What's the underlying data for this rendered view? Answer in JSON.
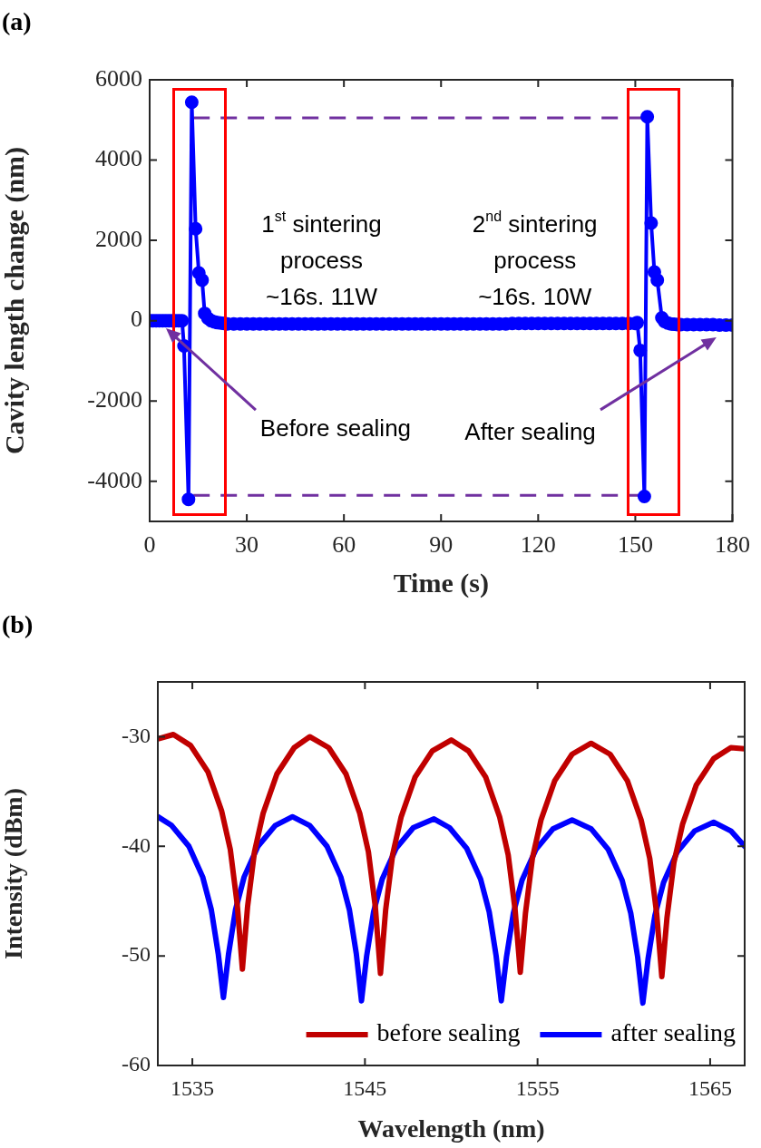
{
  "chart_data": [
    {
      "type": "line",
      "title": "(a)",
      "xlabel": "Time (s)",
      "ylabel": "Cavity length change (nm)",
      "xlim": [
        0,
        180
      ],
      "xticks": [
        0,
        30,
        60,
        90,
        120,
        150,
        180
      ],
      "ylim": [
        -5000,
        6000
      ],
      "yticks": [
        -4000,
        -2000,
        0,
        2000,
        4000,
        6000
      ],
      "marker": "circle",
      "series": [
        {
          "color": "#0000ff",
          "x": [
            0,
            1,
            2,
            3,
            4,
            5,
            6,
            7,
            8,
            9,
            10,
            10.6,
            12,
            13,
            14.2,
            15.2,
            16.2,
            17,
            18,
            19,
            20,
            21,
            22,
            23,
            24,
            26,
            28,
            30,
            32,
            34,
            36,
            38,
            40,
            42,
            44,
            46,
            48,
            50,
            52,
            54,
            56,
            58,
            60,
            62,
            64,
            66,
            68,
            70,
            72,
            74,
            76,
            78,
            80,
            82,
            84,
            86,
            88,
            90,
            92,
            94,
            96,
            98,
            100,
            102,
            104,
            106,
            108,
            110,
            112,
            114,
            116,
            118,
            120,
            122,
            124,
            126,
            128,
            130,
            132,
            134,
            136,
            138,
            140,
            142,
            144,
            146,
            148,
            150,
            150.6,
            151.5,
            152.8,
            153.7,
            154.9,
            155.9,
            156.8,
            158.2,
            159,
            160,
            161,
            162,
            163,
            164,
            166,
            168,
            170,
            172,
            174,
            176,
            178,
            180
          ],
          "values": [
            0,
            0,
            0,
            0,
            0,
            0,
            0,
            0,
            0,
            0,
            0,
            -630,
            -4450,
            5440,
            2290,
            1190,
            1010,
            180,
            60,
            0,
            -30,
            -50,
            -60,
            -70,
            -80,
            -80,
            -80,
            -80,
            -80,
            -80,
            -80,
            -80,
            -80,
            -80,
            -80,
            -80,
            -80,
            -80,
            -80,
            -80,
            -80,
            -80,
            -80,
            -80,
            -80,
            -80,
            -80,
            -80,
            -80,
            -80,
            -80,
            -80,
            -80,
            -80,
            -80,
            -80,
            -80,
            -80,
            -80,
            -80,
            -80,
            -80,
            -80,
            -80,
            -80,
            -80,
            -80,
            -80,
            -70,
            -70,
            -70,
            -70,
            -70,
            -70,
            -70,
            -70,
            -70,
            -70,
            -70,
            -70,
            -70,
            -70,
            -70,
            -70,
            -70,
            -70,
            -70,
            -70,
            -50,
            -740,
            -4380,
            5080,
            2430,
            1210,
            1010,
            70,
            -20,
            -60,
            -80,
            -90,
            -100,
            -100,
            -100,
            -100,
            -100,
            -100,
            -100,
            -110,
            -110,
            -110
          ]
        }
      ],
      "ref_lines": [
        {
          "axis": "y",
          "value": 5050,
          "color": "#7030a0",
          "line_style": "dashed"
        },
        {
          "axis": "y",
          "value": -4350,
          "color": "#7030a0",
          "line_style": "dashed"
        }
      ],
      "annotations": [
        "1$^{st}$ sintering\nprocess\n~16s. 11W",
        "2$^{nd}$ sintering\nprocess\n~16s. 10W",
        "Before sealing",
        "After sealing"
      ]
    },
    {
      "type": "line",
      "title": "(b)",
      "xlabel": "Wavelength (nm)",
      "ylabel": "Intensity (dBm)",
      "xlim": [
        1533,
        1567
      ],
      "xticks": [
        1535,
        1545,
        1555,
        1565
      ],
      "ylim": [
        -60,
        -25
      ],
      "yticks": [
        -60,
        -50,
        -40,
        -30
      ],
      "legend": "bottom right",
      "marker": "none",
      "series": [
        {
          "name": "before sealing",
          "color": "#c00000",
          "x": [
            1533,
            1533.9,
            1534.9,
            1535.9,
            1536.7,
            1537.2,
            1537.6,
            1537.9,
            1538.2,
            1538.6,
            1539.1,
            1539.9,
            1540.9,
            1541.8,
            1542.9,
            1543.9,
            1544.7,
            1545.2,
            1545.6,
            1545.9,
            1546.2,
            1546.6,
            1547.1,
            1547.9,
            1548.9,
            1550,
            1551,
            1552,
            1552.8,
            1553.3,
            1553.7,
            1554,
            1554.3,
            1554.7,
            1555.2,
            1556,
            1557,
            1558.1,
            1559.2,
            1560.2,
            1561,
            1561.5,
            1561.9,
            1562.2,
            1562.5,
            1562.9,
            1563.4,
            1564.2,
            1565.2,
            1566.2,
            1567
          ],
          "values": [
            -30.2,
            -29.8,
            -30.8,
            -33.2,
            -36.8,
            -40.3,
            -45.3,
            -51.2,
            -45.5,
            -40.5,
            -37,
            -33.4,
            -31,
            -30,
            -31,
            -33.4,
            -37,
            -40.5,
            -45.5,
            -51.6,
            -45.8,
            -40.8,
            -37.3,
            -33.7,
            -31.3,
            -30.3,
            -31.3,
            -33.7,
            -37.3,
            -40.8,
            -45.8,
            -51.5,
            -46.1,
            -41.1,
            -37.6,
            -34,
            -31.6,
            -30.6,
            -31.6,
            -34,
            -37.6,
            -41.1,
            -46.1,
            -51.9,
            -46.5,
            -41.5,
            -38,
            -34.4,
            -32,
            -31,
            -31.1
          ]
        },
        {
          "name": "after sealing",
          "color": "#0000ff",
          "x": [
            1533,
            1533.8,
            1534.8,
            1535.6,
            1536.1,
            1536.5,
            1536.8,
            1537.1,
            1537.5,
            1538,
            1538.8,
            1539.8,
            1540.8,
            1541.8,
            1542.8,
            1543.6,
            1544.1,
            1544.5,
            1544.8,
            1545.1,
            1545.5,
            1546,
            1546.8,
            1547.8,
            1549,
            1549.9,
            1550.9,
            1551.7,
            1552.2,
            1552.6,
            1552.9,
            1553.2,
            1553.6,
            1554.1,
            1554.9,
            1555.9,
            1557,
            1558.1,
            1559.1,
            1559.9,
            1560.4,
            1560.8,
            1561.1,
            1561.4,
            1561.8,
            1562.3,
            1563.1,
            1564.1,
            1565.2,
            1566.2,
            1567
          ],
          "values": [
            -37.3,
            -38.1,
            -40,
            -42.8,
            -45.8,
            -49.8,
            -53.8,
            -49.8,
            -45.8,
            -42.8,
            -40,
            -38.1,
            -37.3,
            -38.1,
            -40,
            -42.8,
            -45.8,
            -49.8,
            -54.1,
            -50,
            -46,
            -43,
            -40.2,
            -38.3,
            -37.5,
            -38.3,
            -40.2,
            -43,
            -46,
            -50,
            -54.1,
            -50.1,
            -46.1,
            -43.1,
            -40.3,
            -38.4,
            -37.6,
            -38.4,
            -40.3,
            -43.1,
            -46.1,
            -50.1,
            -54.3,
            -50.3,
            -46.3,
            -43.3,
            -40.5,
            -38.6,
            -37.8,
            -38.6,
            -40
          ]
        }
      ]
    }
  ]
}
